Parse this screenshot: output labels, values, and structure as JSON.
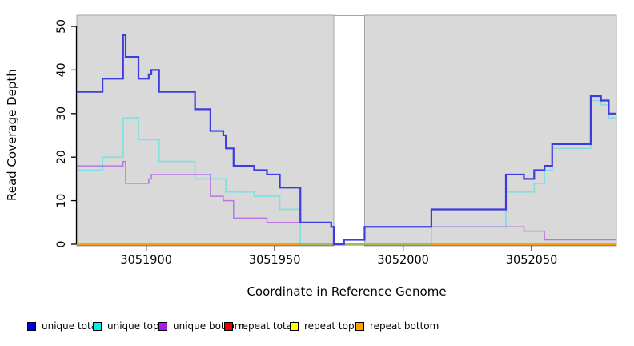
{
  "chart_data": {
    "type": "line",
    "subtype": "step",
    "title": "",
    "xlabel": "Coordinate in Reference Genome",
    "ylabel": "Read Coverage Depth",
    "xlim": [
      3051873,
      3052083
    ],
    "ylim": [
      0,
      50
    ],
    "xticks": [
      3051900,
      3051950,
      3052000,
      3052050
    ],
    "yticks": [
      0,
      10,
      20,
      30,
      40,
      50
    ],
    "grid": false,
    "legend_position": "bottom",
    "panel_bg": "#d9d9d9",
    "panel_border": "#a5a5a5",
    "axis_color": "#000000",
    "uncovered_gap": [
      3051973,
      3051985
    ],
    "draw_order": [
      3,
      4,
      5,
      1,
      2,
      0
    ],
    "series": [
      {
        "name": "unique total",
        "legend_color": "#0000e0",
        "color": "#3c3ce0",
        "width": 2.2,
        "steps": [
          [
            3051873,
            35
          ],
          [
            3051883,
            38
          ],
          [
            3051891,
            48
          ],
          [
            3051892,
            43
          ],
          [
            3051897,
            38
          ],
          [
            3051901,
            39
          ],
          [
            3051902,
            40
          ],
          [
            3051905,
            35
          ],
          [
            3051919,
            31
          ],
          [
            3051925,
            26
          ],
          [
            3051930,
            25
          ],
          [
            3051931,
            22
          ],
          [
            3051934,
            18
          ],
          [
            3051942,
            17
          ],
          [
            3051947,
            16
          ],
          [
            3051952,
            13
          ],
          [
            3051960,
            5
          ],
          [
            3051972,
            4
          ],
          [
            3051973,
            0
          ],
          [
            3051977,
            1
          ],
          [
            3051985,
            4
          ],
          [
            3052011,
            8
          ],
          [
            3052040,
            16
          ],
          [
            3052047,
            15
          ],
          [
            3052051,
            17
          ],
          [
            3052055,
            18
          ],
          [
            3052058,
            23
          ],
          [
            3052073,
            34
          ],
          [
            3052077,
            33
          ],
          [
            3052080,
            30
          ]
        ]
      },
      {
        "name": "unique top",
        "legend_color": "#00eeee",
        "color": "rgba(0,229,238,0.4)",
        "width": 1.7,
        "steps": [
          [
            3051873,
            17
          ],
          [
            3051883,
            20
          ],
          [
            3051891,
            29
          ],
          [
            3051897,
            24
          ],
          [
            3051905,
            19
          ],
          [
            3051919,
            15
          ],
          [
            3051931,
            12
          ],
          [
            3051942,
            11
          ],
          [
            3051952,
            8
          ],
          [
            3051960,
            0
          ],
          [
            3052011,
            4
          ],
          [
            3052040,
            12
          ],
          [
            3052051,
            14
          ],
          [
            3052055,
            17
          ],
          [
            3052058,
            22
          ],
          [
            3052073,
            33
          ],
          [
            3052077,
            32
          ],
          [
            3052080,
            29
          ]
        ]
      },
      {
        "name": "unique bottom",
        "legend_color": "#a020f0",
        "color": "rgba(160,32,240,0.55)",
        "width": 1.5,
        "steps": [
          [
            3051873,
            18
          ],
          [
            3051891,
            19
          ],
          [
            3051892,
            14
          ],
          [
            3051901,
            15
          ],
          [
            3051902,
            16
          ],
          [
            3051925,
            11
          ],
          [
            3051930,
            10
          ],
          [
            3051934,
            6
          ],
          [
            3051947,
            5
          ],
          [
            3051972,
            4
          ],
          [
            3051973,
            0
          ],
          [
            3051977,
            1
          ],
          [
            3051985,
            4
          ],
          [
            3052047,
            3
          ],
          [
            3052055,
            1
          ]
        ]
      },
      {
        "name": "repeat total",
        "legend_color": "#ee0000",
        "color": "#dd0000",
        "width": 1.2,
        "steps": [
          [
            3051873,
            0
          ]
        ]
      },
      {
        "name": "repeat top",
        "legend_color": "#ffff00",
        "color": "#eeee00",
        "width": 1.2,
        "steps": [
          [
            3051873,
            0
          ]
        ]
      },
      {
        "name": "repeat bottom",
        "legend_color": "#ffa000",
        "color": "#ff9f00",
        "width": 2,
        "steps": [
          [
            3051873,
            0
          ]
        ]
      }
    ]
  }
}
